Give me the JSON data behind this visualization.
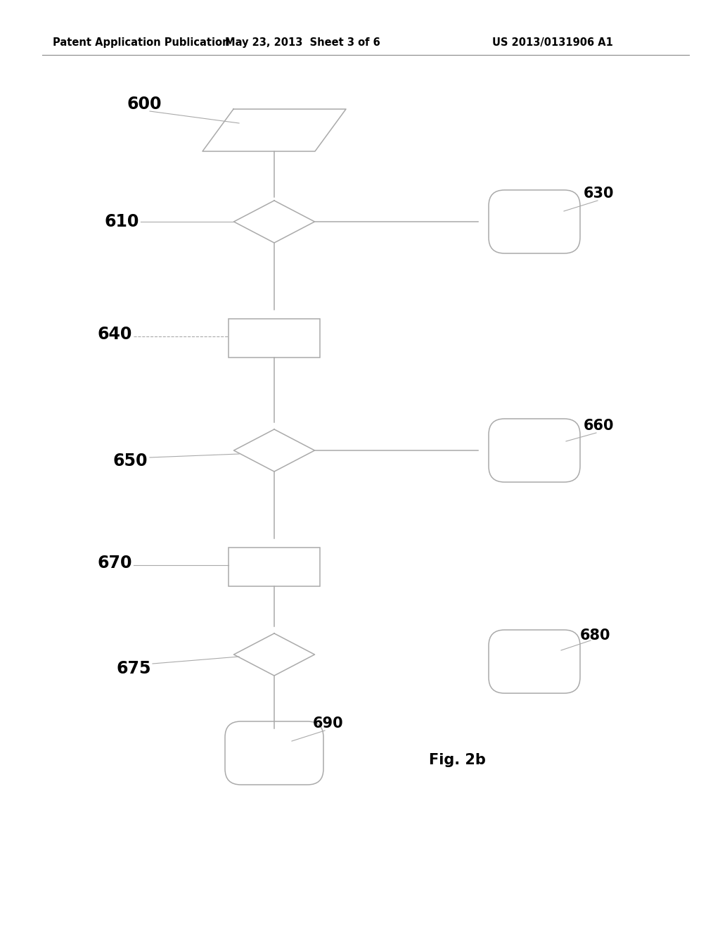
{
  "header_left": "Patent Application Publication",
  "header_mid": "May 23, 2013  Sheet 3 of 6",
  "header_right": "US 2013/0131906 A1",
  "fig_label": "Fig. 2b",
  "bg_color": "#ffffff",
  "line_color": "#aaaaaa",
  "text_color": "#000000"
}
